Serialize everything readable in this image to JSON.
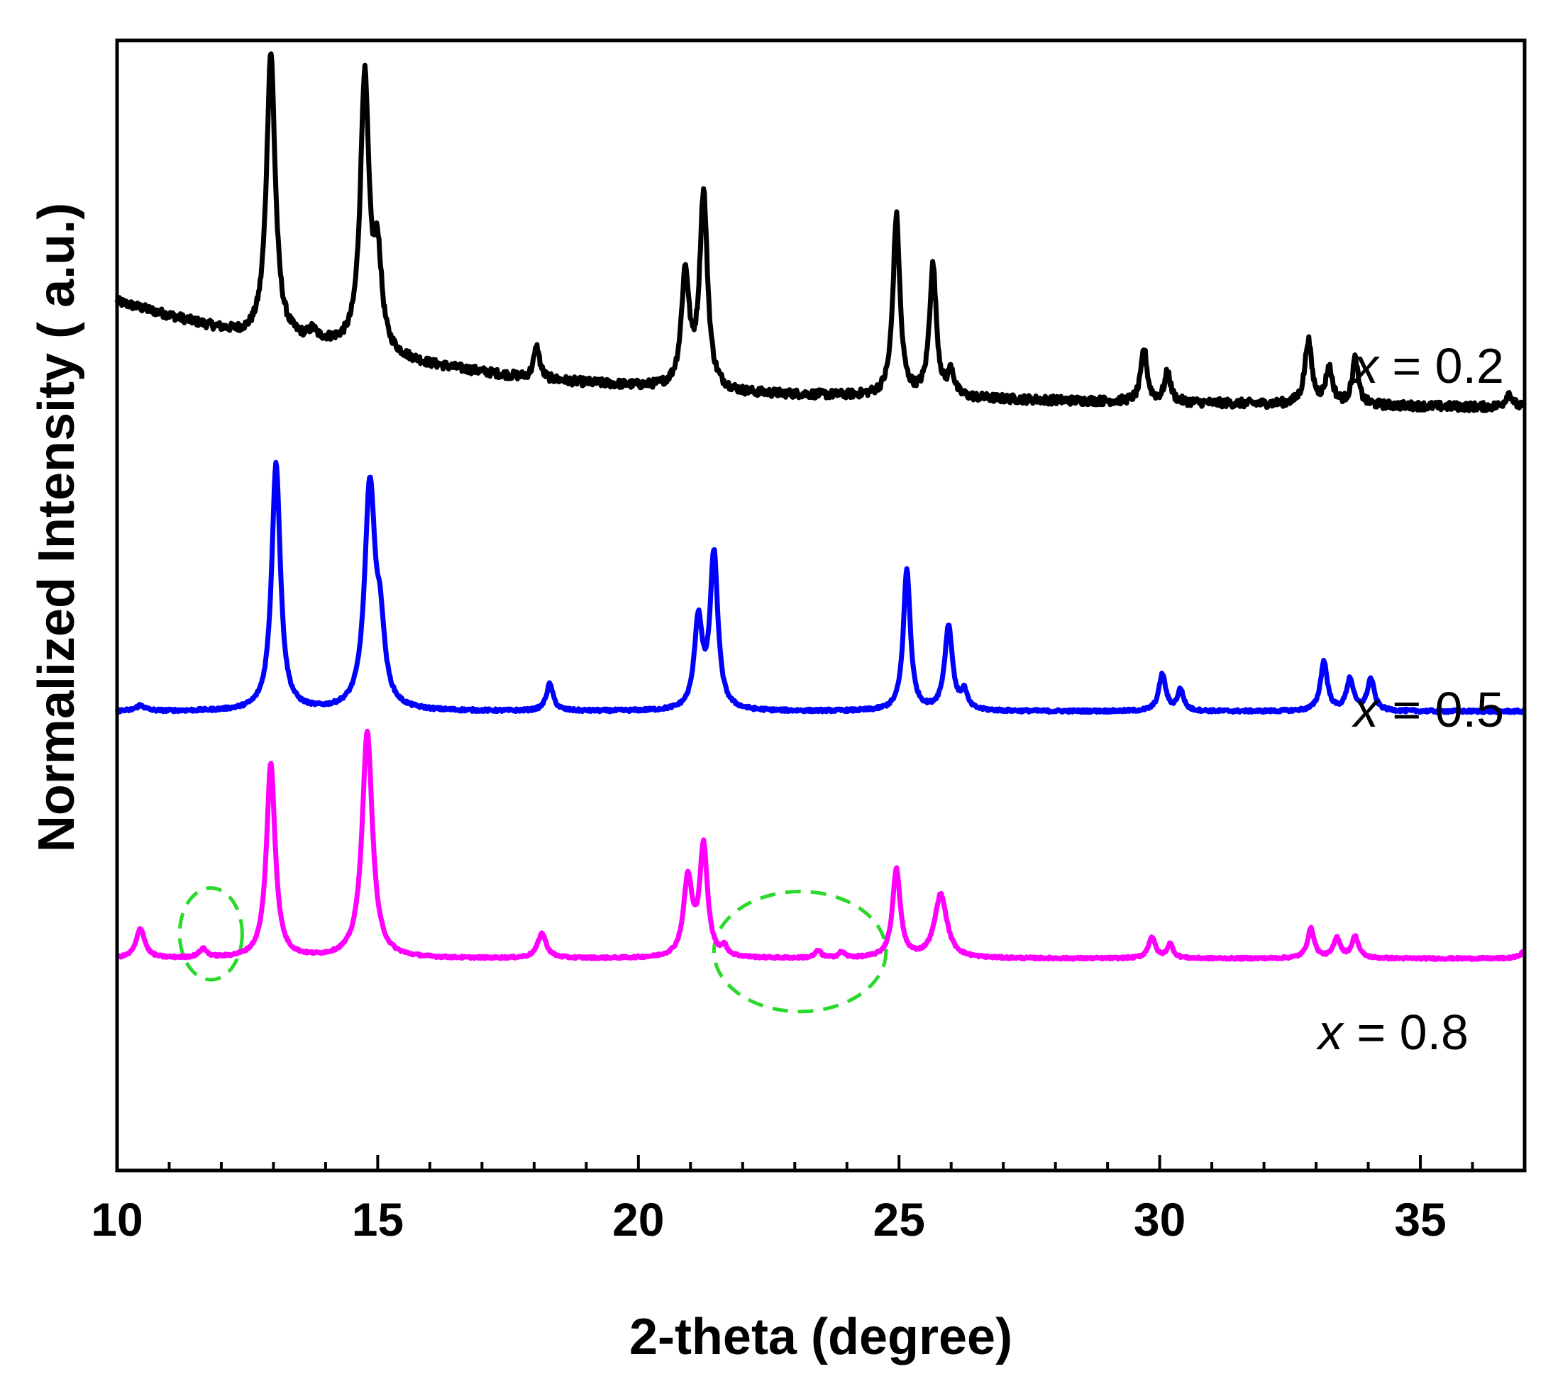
{
  "chart_data": {
    "type": "line",
    "xlabel": "2-theta (degree)",
    "ylabel": "Normalized Intensity ( a.u.)",
    "xlim": [
      10,
      37
    ],
    "x_ticks": [
      "10",
      "15",
      "20",
      "25",
      "30",
      "35"
    ],
    "x_tick_values": [
      10,
      15,
      20,
      25,
      30,
      35
    ],
    "grid": false,
    "series": [
      {
        "label_var": "x",
        "label_rest": " = 0.2",
        "color": "#000000",
        "baseline": [
          [
            10,
            12.3
          ],
          [
            12.5,
            11.8
          ],
          [
            14,
            11.7
          ],
          [
            16,
            11.4
          ],
          [
            18,
            11.2
          ],
          [
            20,
            11.1
          ],
          [
            22,
            11.0
          ],
          [
            25,
            10.95
          ],
          [
            28,
            10.9
          ],
          [
            32,
            10.85
          ],
          [
            37,
            10.8
          ]
        ],
        "noise": 0.06,
        "peaks": [
          {
            "center": 12.95,
            "height": 4.05,
            "width": 0.1
          },
          {
            "center": 13.75,
            "height": 0.12,
            "width": 0.08
          },
          {
            "center": 14.75,
            "height": 3.85,
            "width": 0.1
          },
          {
            "center": 15.0,
            "height": 1.25,
            "width": 0.09
          },
          {
            "center": 18.05,
            "height": 0.45,
            "width": 0.07
          },
          {
            "center": 20.9,
            "height": 1.6,
            "width": 0.09
          },
          {
            "center": 21.25,
            "height": 2.75,
            "width": 0.09
          },
          {
            "center": 24.95,
            "height": 2.55,
            "width": 0.08
          },
          {
            "center": 25.65,
            "height": 1.85,
            "width": 0.08
          },
          {
            "center": 26.0,
            "height": 0.35,
            "width": 0.07
          },
          {
            "center": 29.7,
            "height": 0.75,
            "width": 0.07
          },
          {
            "center": 30.15,
            "height": 0.42,
            "width": 0.07
          },
          {
            "center": 32.85,
            "height": 0.9,
            "width": 0.08
          },
          {
            "center": 33.25,
            "height": 0.5,
            "width": 0.08
          },
          {
            "center": 33.75,
            "height": 0.65,
            "width": 0.07
          },
          {
            "center": 36.7,
            "height": 0.2,
            "width": 0.08
          }
        ]
      },
      {
        "label_var": "x",
        "label_rest": " = 0.5",
        "color": "#0000ff",
        "baseline": [
          [
            10,
            6.5
          ],
          [
            37,
            6.5
          ]
        ],
        "noise": 0.02,
        "peaks": [
          {
            "center": 10.45,
            "height": 0.08,
            "width": 0.1
          },
          {
            "center": 13.05,
            "height": 3.5,
            "width": 0.1
          },
          {
            "center": 14.85,
            "height": 3.15,
            "width": 0.12
          },
          {
            "center": 15.05,
            "height": 0.9,
            "width": 0.1
          },
          {
            "center": 18.3,
            "height": 0.38,
            "width": 0.08
          },
          {
            "center": 21.15,
            "height": 1.25,
            "width": 0.09
          },
          {
            "center": 21.45,
            "height": 2.2,
            "width": 0.09
          },
          {
            "center": 25.15,
            "height": 2.0,
            "width": 0.08
          },
          {
            "center": 25.95,
            "height": 1.2,
            "width": 0.09
          },
          {
            "center": 26.25,
            "height": 0.25,
            "width": 0.07
          },
          {
            "center": 30.05,
            "height": 0.52,
            "width": 0.08
          },
          {
            "center": 30.4,
            "height": 0.3,
            "width": 0.07
          },
          {
            "center": 33.15,
            "height": 0.7,
            "width": 0.08
          },
          {
            "center": 33.65,
            "height": 0.45,
            "width": 0.08
          },
          {
            "center": 34.05,
            "height": 0.45,
            "width": 0.08
          }
        ]
      },
      {
        "label_var": "x",
        "label_rest": " = 0.8",
        "color": "#ff00ff",
        "baseline": [
          [
            10,
            3.0
          ],
          [
            37,
            3.0
          ]
        ],
        "noise": 0.015,
        "peaks": [
          {
            "center": 10.45,
            "height": 0.42,
            "width": 0.1
          },
          {
            "center": 11.65,
            "height": 0.12,
            "width": 0.09
          },
          {
            "center": 12.95,
            "height": 2.75,
            "width": 0.1
          },
          {
            "center": 14.8,
            "height": 3.2,
            "width": 0.12
          },
          {
            "center": 18.15,
            "height": 0.35,
            "width": 0.1
          },
          {
            "center": 20.95,
            "height": 1.1,
            "width": 0.1
          },
          {
            "center": 21.25,
            "height": 1.55,
            "width": 0.09
          },
          {
            "center": 21.65,
            "height": 0.12,
            "width": 0.07
          },
          {
            "center": 23.45,
            "height": 0.1,
            "width": 0.07
          },
          {
            "center": 23.9,
            "height": 0.08,
            "width": 0.07
          },
          {
            "center": 24.95,
            "height": 1.25,
            "width": 0.09
          },
          {
            "center": 25.8,
            "height": 0.9,
            "width": 0.14
          },
          {
            "center": 29.85,
            "height": 0.3,
            "width": 0.08
          },
          {
            "center": 30.2,
            "height": 0.2,
            "width": 0.07
          },
          {
            "center": 32.9,
            "height": 0.42,
            "width": 0.08
          },
          {
            "center": 33.4,
            "height": 0.28,
            "width": 0.08
          },
          {
            "center": 33.75,
            "height": 0.3,
            "width": 0.08
          },
          {
            "center": 37.0,
            "height": 0.1,
            "width": 0.1
          }
        ]
      }
    ],
    "annotations": [
      {
        "type": "dashed-ellipse",
        "color": "#2bd92b",
        "cx": 11.8,
        "cy": 3.35,
        "rx": 0.6,
        "ry": 0.65
      },
      {
        "type": "dashed-ellipse",
        "color": "#2bd92b",
        "cx": 23.1,
        "cy": 3.1,
        "rx": 1.65,
        "ry": 0.85
      }
    ],
    "ylim": [
      0,
      16
    ]
  }
}
